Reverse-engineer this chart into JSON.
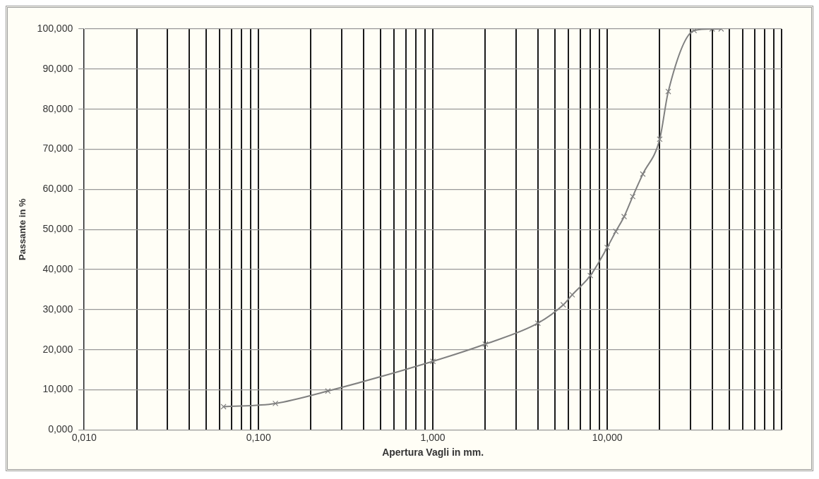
{
  "chart_data": {
    "type": "line",
    "xlabel": "Apertura Vagli in mm.",
    "ylabel": "Passante in %",
    "x": [
      0.063,
      0.125,
      0.25,
      1,
      2,
      4,
      5.6,
      6.3,
      8,
      10,
      11.2,
      12.5,
      14,
      16,
      20,
      22.4,
      31.5,
      40,
      45
    ],
    "series": [
      {
        "color": "#808080",
        "values": [
          5.8,
          6.6,
          9.7,
          17.1,
          21.4,
          26.6,
          31.2,
          33.7,
          38.5,
          45.5,
          49.5,
          53.2,
          58.2,
          63.8,
          72.5,
          84.4,
          99.6,
          100,
          100
        ]
      }
    ],
    "log": "x",
    "xlim": [
      0.01,
      100
    ],
    "xticks": [
      {
        "value": 0.01,
        "label": "0,010"
      },
      {
        "value": 0.02,
        "label": null
      },
      {
        "value": 0.03,
        "label": null
      },
      {
        "value": 0.04,
        "label": null
      },
      {
        "value": 0.05,
        "label": null
      },
      {
        "value": 0.06,
        "label": null
      },
      {
        "value": 0.07,
        "label": null
      },
      {
        "value": 0.08,
        "label": null
      },
      {
        "value": 0.09,
        "label": null
      },
      {
        "value": 0.1,
        "label": "0,100"
      },
      {
        "value": 0.2,
        "label": null
      },
      {
        "value": 0.3,
        "label": null
      },
      {
        "value": 0.4,
        "label": null
      },
      {
        "value": 0.5,
        "label": null
      },
      {
        "value": 0.6,
        "label": null
      },
      {
        "value": 0.7,
        "label": null
      },
      {
        "value": 0.8,
        "label": null
      },
      {
        "value": 0.9,
        "label": null
      },
      {
        "value": 1,
        "label": "1,000"
      },
      {
        "value": 2,
        "label": null
      },
      {
        "value": 3,
        "label": null
      },
      {
        "value": 4,
        "label": null
      },
      {
        "value": 5,
        "label": null
      },
      {
        "value": 6,
        "label": null
      },
      {
        "value": 7,
        "label": null
      },
      {
        "value": 8,
        "label": null
      },
      {
        "value": 9,
        "label": null
      },
      {
        "value": 10,
        "label": "10,000"
      },
      {
        "value": 20,
        "label": null
      },
      {
        "value": 30,
        "label": null
      },
      {
        "value": 40,
        "label": null
      },
      {
        "value": 50,
        "label": null
      },
      {
        "value": 60,
        "label": null
      },
      {
        "value": 70,
        "label": null
      },
      {
        "value": 80,
        "label": null
      },
      {
        "value": 90,
        "label": null
      },
      {
        "value": 100,
        "label": null
      }
    ],
    "ylim": [
      0,
      100
    ],
    "yticks": [
      {
        "value": 0,
        "label": "0,000"
      },
      {
        "value": 10,
        "label": "10,000"
      },
      {
        "value": 20,
        "label": "20,000"
      },
      {
        "value": 30,
        "label": "30,000"
      },
      {
        "value": 40,
        "label": "40,000"
      },
      {
        "value": 50,
        "label": "50,000"
      },
      {
        "value": 60,
        "label": "60,000"
      },
      {
        "value": 70,
        "label": "70,000"
      },
      {
        "value": 80,
        "label": "80,000"
      },
      {
        "value": 90,
        "label": "90,000"
      },
      {
        "value": 100,
        "label": "100,000"
      }
    ],
    "grid": true,
    "marker": "cross",
    "line_style": "solid"
  }
}
